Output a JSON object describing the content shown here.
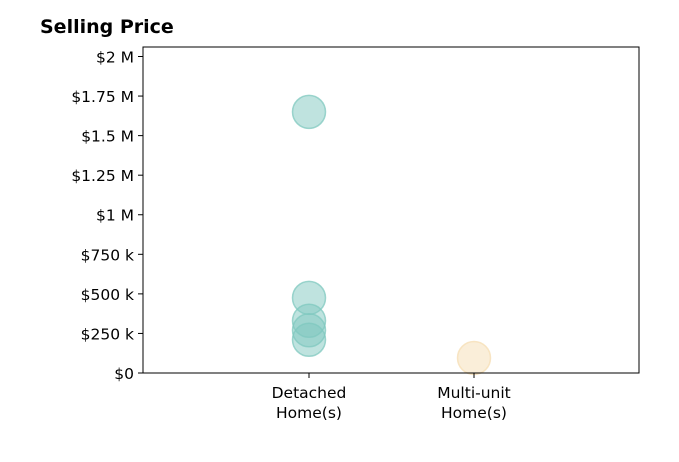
{
  "chart_data": {
    "type": "scatter",
    "title": "Selling Price",
    "xlabel": "",
    "ylabel": "",
    "categories": [
      "Detached\nHome(s)",
      "Multi-unit\nHome(s)"
    ],
    "ylim": [
      0,
      2060000
    ],
    "yticks": [
      {
        "value": 0,
        "label": "$0"
      },
      {
        "value": 250000,
        "label": "$250 k"
      },
      {
        "value": 500000,
        "label": "$500 k"
      },
      {
        "value": 750000,
        "label": "$750 k"
      },
      {
        "value": 1000000,
        "label": "$1 M"
      },
      {
        "value": 1250000,
        "label": "$1.25 M"
      },
      {
        "value": 1500000,
        "label": "$1.5 M"
      },
      {
        "value": 1750000,
        "label": "$1.75 M"
      },
      {
        "value": 2000000,
        "label": "$2 M"
      }
    ],
    "grid": false,
    "series": [
      {
        "category": "Detached\nHome(s)",
        "color": "#7fc8bf",
        "values": [
          1650000,
          475000,
          330000,
          270000,
          210000
        ]
      },
      {
        "category": "Multi-unit\nHome(s)",
        "color": "#f5deb3",
        "values": [
          95000
        ]
      }
    ]
  }
}
